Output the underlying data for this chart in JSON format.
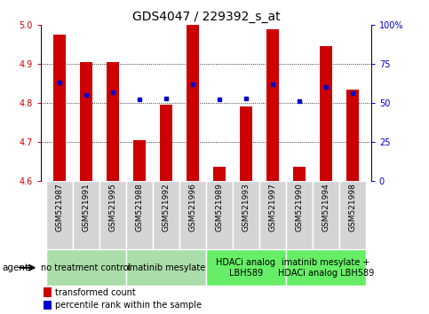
{
  "title": "GDS4047 / 229392_s_at",
  "samples": [
    "GSM521987",
    "GSM521991",
    "GSM521995",
    "GSM521988",
    "GSM521992",
    "GSM521996",
    "GSM521989",
    "GSM521993",
    "GSM521997",
    "GSM521990",
    "GSM521994",
    "GSM521998"
  ],
  "red_values": [
    4.975,
    4.905,
    4.905,
    4.705,
    4.795,
    5.005,
    4.635,
    4.79,
    4.99,
    4.635,
    4.945,
    4.835
  ],
  "blue_values": [
    63,
    55,
    57,
    52,
    53,
    62,
    52,
    53,
    62,
    51,
    60,
    56
  ],
  "ymin": 4.6,
  "ymax": 5.0,
  "yticks": [
    4.6,
    4.7,
    4.8,
    4.9,
    5.0
  ],
  "right_yticks": [
    0,
    25,
    50,
    75,
    100
  ],
  "right_yticklabels": [
    "0",
    "25",
    "50",
    "75",
    "100%"
  ],
  "bar_color": "#cc0000",
  "dot_color": "#0000cc",
  "groups": [
    {
      "label": "no treatment control",
      "start": 0,
      "end": 3,
      "color": "#aaddaa"
    },
    {
      "label": "imatinib mesylate",
      "start": 3,
      "end": 6,
      "color": "#aaddaa"
    },
    {
      "label": "HDACi analog\nLBH589",
      "start": 6,
      "end": 9,
      "color": "#66ee66"
    },
    {
      "label": "imatinib mesylate +\nHDACi analog LBH589",
      "start": 9,
      "end": 12,
      "color": "#66ee66"
    }
  ],
  "legend_items": [
    {
      "label": "transformed count",
      "color": "#cc0000"
    },
    {
      "label": "percentile rank within the sample",
      "color": "#0000cc"
    }
  ],
  "agent_label": "agent",
  "bar_width": 0.45,
  "grid_color": "#000000",
  "plot_bg": "#ffffff",
  "title_fontsize": 10,
  "tick_fontsize": 7,
  "sample_fontsize": 6.5,
  "group_fontsize": 7,
  "legend_fontsize": 7
}
